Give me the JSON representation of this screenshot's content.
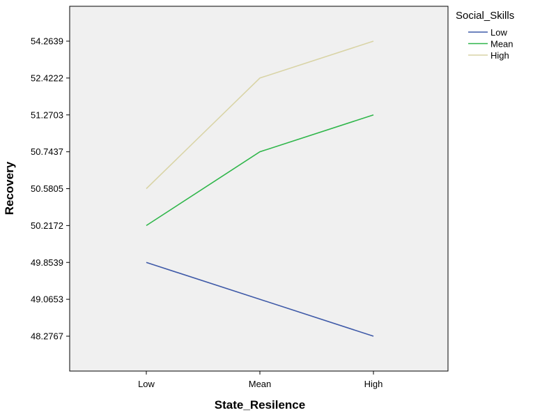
{
  "chart_data": {
    "type": "line",
    "title": "",
    "xlabel": "State_Resilence",
    "ylabel": "Recovery",
    "categories": [
      "Low",
      "Mean",
      "High"
    ],
    "y_tick_labels": [
      "48.2767",
      "49.0653",
      "49.8539",
      "50.2172",
      "50.5805",
      "50.7437",
      "51.2703",
      "52.4222",
      "54.2639"
    ],
    "y_scale": "categorical-ordinal (evenly spaced tick labels)",
    "grid": false,
    "plot_background": "#f0f0f0",
    "legend": {
      "title": "Social_Skills",
      "placement": "top-right-outside"
    },
    "series": [
      {
        "name": "Low",
        "color": "#3f5aa8",
        "values": [
          49.8539,
          49.0653,
          48.2767
        ],
        "tick_index": [
          2,
          1,
          0
        ]
      },
      {
        "name": "Mean",
        "color": "#2fb64a",
        "values": [
          50.2172,
          50.7437,
          51.2703
        ],
        "tick_index": [
          3,
          5,
          6
        ]
      },
      {
        "name": "High",
        "color": "#d9d4a6",
        "values": [
          50.5805,
          52.4222,
          54.2639
        ],
        "tick_index": [
          4,
          7,
          8
        ]
      }
    ]
  }
}
